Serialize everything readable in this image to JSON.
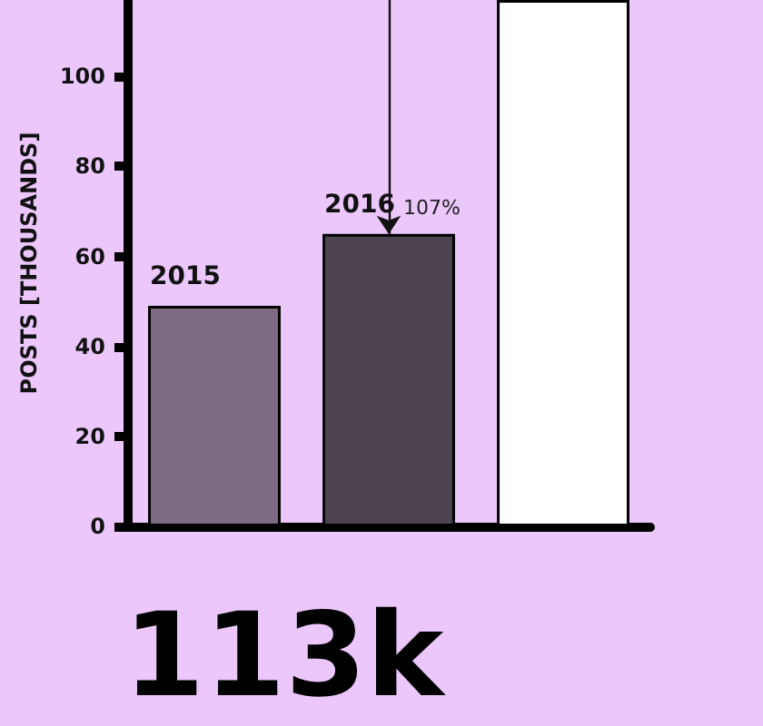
{
  "chart_data": {
    "type": "bar",
    "ylabel": "POSTS [THOUSANDS]",
    "categories": [
      "2015",
      "2016",
      null
    ],
    "values": [
      49,
      65,
      117
    ],
    "colors": [
      "#7d6b83",
      "#4d4250",
      "#ffffff"
    ],
    "ylim": [
      0,
      117
    ],
    "yticks": [
      0,
      20,
      40,
      60,
      80,
      100
    ],
    "annotations": [
      {
        "text": "107%",
        "x": "2016",
        "y": 65
      },
      "113k"
    ],
    "grid": false
  }
}
